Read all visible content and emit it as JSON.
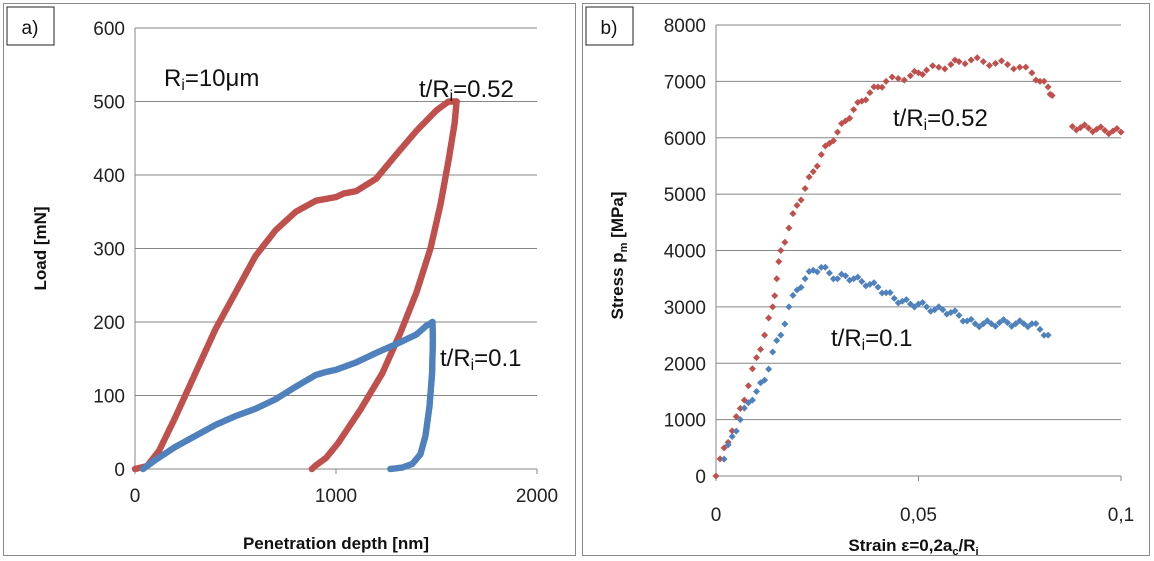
{
  "colors": {
    "red_series": "#c0504d",
    "blue_series": "#4f81bd",
    "grid": "#868686"
  },
  "chart_data": [
    {
      "panel_label": "a)",
      "type": "line",
      "xlabel": "Penetration depth [nm]",
      "ylabel": "Load [mN]",
      "xlim": [
        0,
        2000
      ],
      "ylim": [
        0,
        600
      ],
      "xticks": [
        "0",
        "1000",
        "2000"
      ],
      "yticks": [
        "0",
        "100",
        "200",
        "300",
        "400",
        "500",
        "600"
      ],
      "grid": "horizontal",
      "annotations": [
        {
          "text": "R",
          "sub": "i",
          "tail": "=10μm"
        },
        {
          "text": "t/R",
          "sub": "i",
          "tail": "=0.52"
        },
        {
          "text": "t/R",
          "sub": "i",
          "tail": "=0.1"
        }
      ],
      "series": [
        {
          "color_key": "red_series",
          "loading": [
            [
              0,
              0
            ],
            [
              60,
              4
            ],
            [
              120,
              25
            ],
            [
              200,
              70
            ],
            [
              300,
              130
            ],
            [
              400,
              190
            ],
            [
              500,
              240
            ],
            [
              600,
              290
            ],
            [
              700,
              325
            ],
            [
              800,
              350
            ],
            [
              900,
              365
            ],
            [
              1000,
              370
            ],
            [
              1040,
              375
            ],
            [
              1100,
              378
            ],
            [
              1200,
              395
            ],
            [
              1300,
              428
            ],
            [
              1400,
              460
            ],
            [
              1500,
              488
            ],
            [
              1560,
              500
            ],
            [
              1600,
              500
            ]
          ],
          "unloading": [
            [
              1600,
              500
            ],
            [
              1590,
              470
            ],
            [
              1560,
              420
            ],
            [
              1520,
              360
            ],
            [
              1470,
              300
            ],
            [
              1400,
              240
            ],
            [
              1320,
              185
            ],
            [
              1230,
              130
            ],
            [
              1120,
              80
            ],
            [
              1010,
              35
            ],
            [
              950,
              15
            ],
            [
              900,
              5
            ],
            [
              880,
              0
            ]
          ]
        },
        {
          "color_key": "blue_series",
          "loading": [
            [
              40,
              0
            ],
            [
              100,
              12
            ],
            [
              200,
              30
            ],
            [
              300,
              45
            ],
            [
              400,
              60
            ],
            [
              500,
              72
            ],
            [
              600,
              82
            ],
            [
              700,
              95
            ],
            [
              800,
              112
            ],
            [
              900,
              128
            ],
            [
              950,
              132
            ],
            [
              1000,
              135
            ],
            [
              1100,
              145
            ],
            [
              1200,
              158
            ],
            [
              1300,
              170
            ],
            [
              1400,
              183
            ],
            [
              1450,
              195
            ],
            [
              1480,
              200
            ]
          ],
          "unloading": [
            [
              1480,
              200
            ],
            [
              1482,
              175
            ],
            [
              1478,
              130
            ],
            [
              1465,
              85
            ],
            [
              1445,
              45
            ],
            [
              1420,
              20
            ],
            [
              1380,
              7
            ],
            [
              1330,
              2
            ],
            [
              1270,
              0
            ]
          ]
        }
      ]
    },
    {
      "panel_label": "b)",
      "type": "scatter",
      "xlabel": "Strain ε=0,2a",
      "xlabel_sub_c": "c",
      "xlabel_tail": "/R",
      "xlabel_sub_i": "i",
      "ylabel": "Stress p",
      "ylabel_sub": "m",
      "ylabel_tail": " [MPa]",
      "xlim": [
        0,
        0.1
      ],
      "ylim": [
        0,
        8000
      ],
      "xticks": [
        "0",
        "0,05",
        "0,1"
      ],
      "yticks": [
        "0",
        "1000",
        "2000",
        "3000",
        "4000",
        "5000",
        "6000",
        "7000",
        "8000"
      ],
      "grid": "horizontal",
      "annotations": [
        {
          "text": "t/R",
          "sub": "i",
          "tail": "=0.52"
        },
        {
          "text": "t/R",
          "sub": "i",
          "tail": "=0.1"
        }
      ],
      "series": [
        {
          "color_key": "red_series",
          "points": [
            [
              0,
              0
            ],
            [
              0.002,
              500
            ],
            [
              0.004,
              800
            ],
            [
              0.006,
              1200
            ],
            [
              0.008,
              1600
            ],
            [
              0.01,
              2100
            ],
            [
              0.012,
              2500
            ],
            [
              0.014,
              3000
            ],
            [
              0.015,
              3500
            ],
            [
              0.016,
              4000
            ],
            [
              0.018,
              4400
            ],
            [
              0.02,
              4800
            ],
            [
              0.022,
              5100
            ],
            [
              0.024,
              5400
            ],
            [
              0.026,
              5700
            ],
            [
              0.028,
              5900
            ],
            [
              0.03,
              6100
            ],
            [
              0.032,
              6300
            ],
            [
              0.034,
              6500
            ],
            [
              0.036,
              6650
            ],
            [
              0.038,
              6800
            ],
            [
              0.04,
              6900
            ],
            [
              0.042,
              7000
            ],
            [
              0.045,
              7050
            ],
            [
              0.048,
              7100
            ],
            [
              0.05,
              7150
            ],
            [
              0.052,
              7200
            ],
            [
              0.055,
              7250
            ],
            [
              0.058,
              7300
            ],
            [
              0.06,
              7350
            ],
            [
              0.063,
              7380
            ],
            [
              0.066,
              7350
            ],
            [
              0.069,
              7320
            ],
            [
              0.072,
              7300
            ],
            [
              0.075,
              7250
            ],
            [
              0.078,
              7150
            ],
            [
              0.08,
              7000
            ],
            [
              0.082,
              6900
            ],
            [
              0.083,
              6750
            ],
            [
              0.088,
              6200
            ],
            [
              0.09,
              6180
            ],
            [
              0.092,
              6170
            ],
            [
              0.094,
              6150
            ],
            [
              0.096,
              6130
            ],
            [
              0.098,
              6120
            ],
            [
              0.1,
              6100
            ]
          ]
        },
        {
          "color_key": "blue_series",
          "points": [
            [
              0.002,
              300
            ],
            [
              0.004,
              700
            ],
            [
              0.006,
              1000
            ],
            [
              0.008,
              1300
            ],
            [
              0.01,
              1500
            ],
            [
              0.012,
              1700
            ],
            [
              0.014,
              2200
            ],
            [
              0.016,
              2500
            ],
            [
              0.018,
              3000
            ],
            [
              0.02,
              3300
            ],
            [
              0.022,
              3500
            ],
            [
              0.024,
              3650
            ],
            [
              0.026,
              3700
            ],
            [
              0.028,
              3600
            ],
            [
              0.03,
              3500
            ],
            [
              0.032,
              3550
            ],
            [
              0.034,
              3500
            ],
            [
              0.036,
              3450
            ],
            [
              0.038,
              3400
            ],
            [
              0.04,
              3350
            ],
            [
              0.042,
              3250
            ],
            [
              0.044,
              3150
            ],
            [
              0.046,
              3100
            ],
            [
              0.048,
              3050
            ],
            [
              0.05,
              3050
            ],
            [
              0.052,
              3000
            ],
            [
              0.054,
              2950
            ],
            [
              0.056,
              2950
            ],
            [
              0.058,
              2900
            ],
            [
              0.06,
              2850
            ],
            [
              0.062,
              2750
            ],
            [
              0.064,
              2700
            ],
            [
              0.066,
              2700
            ],
            [
              0.068,
              2700
            ],
            [
              0.07,
              2720
            ],
            [
              0.072,
              2720
            ],
            [
              0.074,
              2700
            ],
            [
              0.076,
              2700
            ],
            [
              0.078,
              2700
            ],
            [
              0.08,
              2600
            ],
            [
              0.082,
              2500
            ]
          ]
        }
      ]
    }
  ]
}
